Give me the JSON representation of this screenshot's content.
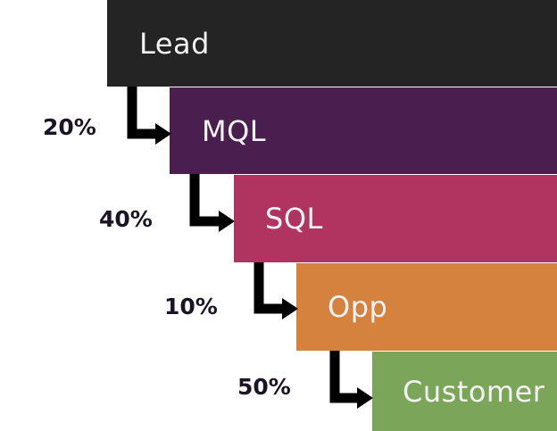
{
  "colors": {
    "lead": "#242424",
    "mql": "#4a1e4e",
    "sql": "#b03460",
    "opp": "#d4823e",
    "customer": "#7ba65a",
    "label_text": "#f2f2f2",
    "rate_text": "#1c1424",
    "arrow": "#000000"
  },
  "funnel": {
    "stages": [
      {
        "label": "Lead"
      },
      {
        "label": "MQL"
      },
      {
        "label": "SQL"
      },
      {
        "label": "Opp"
      },
      {
        "label": "Customer"
      }
    ],
    "rates": [
      "20%",
      "40%",
      "10%",
      "50%"
    ]
  }
}
